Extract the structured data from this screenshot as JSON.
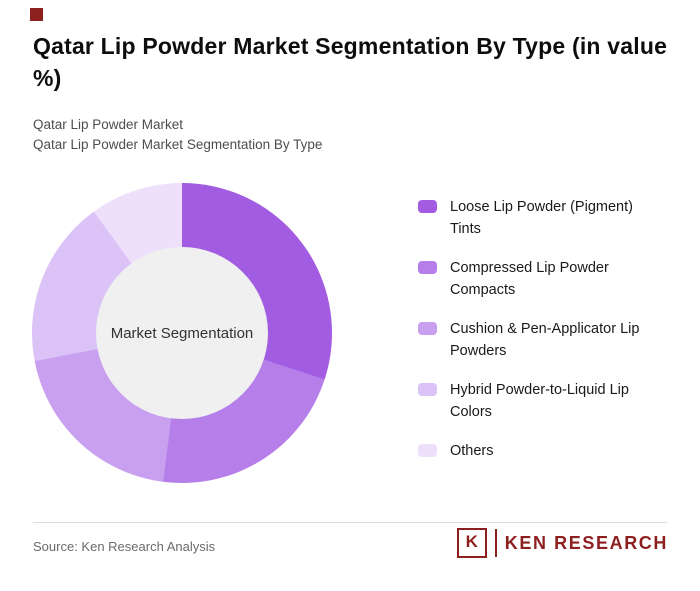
{
  "accent_color": "#8e1f1f",
  "header": {
    "title": "Qatar Lip Powder Market Segmentation By Type (in value %)",
    "subtitle_line1": "Qatar Lip Powder Market",
    "subtitle_line2": "Qatar Lip Powder Market Segmentation By Type"
  },
  "chart_data": {
    "type": "pie",
    "style": "donut",
    "title": "Qatar Lip Powder Market Segmentation By Type (in value %)",
    "center_label": "Market Segmentation",
    "categories": [
      "Loose Lip Powder (Pigment) Tints",
      "Compressed Lip Powder Compacts",
      "Cushion & Pen-Applicator Lip Powders",
      "Hybrid Powder-to-Liquid Lip Colors",
      "Others"
    ],
    "values": [
      30,
      22,
      20,
      18,
      10
    ],
    "unit": "%",
    "colors": [
      "#a25ce2",
      "#b57ee9",
      "#c9a0f0",
      "#dcc3f7",
      "#eedffb"
    ],
    "inner_color": "#f0f0f0",
    "legend_position": "right",
    "start_angle_deg": 0,
    "direction": "clockwise"
  },
  "footer": {
    "source_text": "Source: Ken Research Analysis",
    "logo": {
      "letter": "K",
      "text": "KEN RESEARCH",
      "color": "#8e1f1f"
    }
  }
}
